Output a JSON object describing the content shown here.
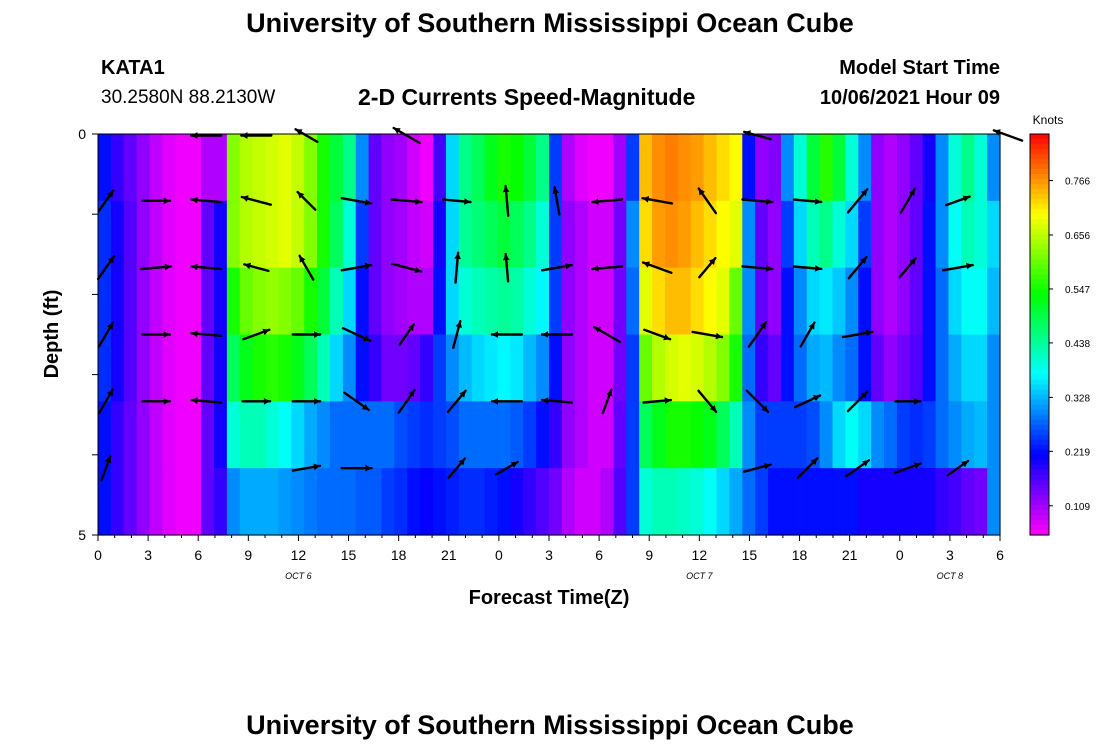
{
  "title": "University of Southern Mississippi Ocean Cube",
  "footer_title": "University of Southern Mississippi Ocean Cube",
  "station": {
    "id": "KATA1",
    "position": "30.2580N  88.2130W"
  },
  "subtitle": "2-D Currents Speed-Magnitude",
  "model_start": {
    "label": "Model Start Time",
    "value": "10/06/2021 Hour 09"
  },
  "chart_data": {
    "type": "heatmap",
    "title": "2-D Currents Speed-Magnitude",
    "xlabel": "Forecast Time(Z)",
    "ylabel": "Depth (ft)",
    "x_ticks": [
      "0",
      "3",
      "6",
      "9",
      "12",
      "15",
      "18",
      "21",
      "0",
      "3",
      "6",
      "9",
      "12",
      "15",
      "18",
      "21",
      "0",
      "3",
      "6"
    ],
    "x_range_hours": [
      0,
      54
    ],
    "date_labels": [
      {
        "text": "OCT 6",
        "hour": 12
      },
      {
        "text": "OCT 7",
        "hour": 36
      },
      {
        "text": "OCT 8",
        "hour": 51
      }
    ],
    "y_ticks": [
      "0",
      "5"
    ],
    "ylim": [
      0,
      5
    ],
    "depth_levels": [
      0,
      1,
      2,
      3,
      4,
      5
    ],
    "colorbar": {
      "label": "Knots",
      "ticks": [
        0.109,
        0.219,
        0.328,
        0.438,
        0.547,
        0.656,
        0.766
      ],
      "range": [
        0.05,
        0.86
      ]
    },
    "speed_knots_by_hour": [
      [
        0.22,
        0.18,
        0.15,
        0.12,
        0.09,
        0.07,
        0.06,
        0.06,
        0.1,
        0.1,
        0.62,
        0.65,
        0.66,
        0.67,
        0.68,
        0.66,
        0.62,
        0.55,
        0.5,
        0.45,
        0.3,
        0.15,
        0.12,
        0.11,
        0.08,
        0.06,
        0.17,
        0.35,
        0.45,
        0.48,
        0.52,
        0.55,
        0.54,
        0.5,
        0.45,
        0.25,
        0.1,
        0.07,
        0.06,
        0.06,
        0.11,
        0.25,
        0.74,
        0.77,
        0.78,
        0.77,
        0.76,
        0.74,
        0.72,
        0.7,
        0.22,
        0.12,
        0.13,
        0.3,
        0.4,
        0.5,
        0.56,
        0.5,
        0.4,
        0.3,
        0.12,
        0.1,
        0.12,
        0.15,
        0.2,
        0.3,
        0.4,
        0.45,
        0.4,
        0.3
      ],
      [
        0.24,
        0.2,
        0.16,
        0.12,
        0.09,
        0.07,
        0.06,
        0.06,
        0.15,
        0.2,
        0.62,
        0.65,
        0.66,
        0.67,
        0.68,
        0.66,
        0.62,
        0.55,
        0.48,
        0.4,
        0.25,
        0.15,
        0.12,
        0.11,
        0.09,
        0.08,
        0.2,
        0.35,
        0.44,
        0.46,
        0.48,
        0.5,
        0.48,
        0.45,
        0.4,
        0.25,
        0.12,
        0.1,
        0.08,
        0.08,
        0.14,
        0.3,
        0.72,
        0.76,
        0.77,
        0.76,
        0.74,
        0.72,
        0.7,
        0.68,
        0.3,
        0.15,
        0.12,
        0.25,
        0.35,
        0.42,
        0.45,
        0.4,
        0.35,
        0.25,
        0.12,
        0.1,
        0.12,
        0.15,
        0.22,
        0.3,
        0.38,
        0.42,
        0.4,
        0.35
      ],
      [
        0.24,
        0.2,
        0.16,
        0.12,
        0.09,
        0.07,
        0.06,
        0.06,
        0.15,
        0.2,
        0.55,
        0.6,
        0.62,
        0.63,
        0.62,
        0.6,
        0.55,
        0.5,
        0.42,
        0.35,
        0.22,
        0.15,
        0.12,
        0.11,
        0.1,
        0.1,
        0.22,
        0.35,
        0.4,
        0.42,
        0.43,
        0.44,
        0.43,
        0.4,
        0.37,
        0.25,
        0.12,
        0.1,
        0.08,
        0.08,
        0.14,
        0.28,
        0.68,
        0.72,
        0.74,
        0.74,
        0.72,
        0.7,
        0.68,
        0.6,
        0.3,
        0.15,
        0.12,
        0.22,
        0.3,
        0.35,
        0.36,
        0.34,
        0.3,
        0.22,
        0.12,
        0.1,
        0.12,
        0.15,
        0.22,
        0.28,
        0.35,
        0.38,
        0.38,
        0.33
      ],
      [
        0.24,
        0.2,
        0.16,
        0.12,
        0.09,
        0.07,
        0.06,
        0.06,
        0.15,
        0.2,
        0.48,
        0.52,
        0.55,
        0.56,
        0.55,
        0.52,
        0.48,
        0.42,
        0.35,
        0.3,
        0.22,
        0.18,
        0.14,
        0.14,
        0.15,
        0.18,
        0.25,
        0.3,
        0.33,
        0.35,
        0.36,
        0.37,
        0.36,
        0.33,
        0.3,
        0.22,
        0.12,
        0.1,
        0.08,
        0.08,
        0.14,
        0.25,
        0.6,
        0.65,
        0.67,
        0.68,
        0.67,
        0.65,
        0.62,
        0.55,
        0.28,
        0.18,
        0.15,
        0.22,
        0.28,
        0.32,
        0.33,
        0.3,
        0.28,
        0.22,
        0.15,
        0.12,
        0.14,
        0.16,
        0.22,
        0.28,
        0.32,
        0.35,
        0.35,
        0.3
      ],
      [
        0.22,
        0.18,
        0.15,
        0.12,
        0.09,
        0.07,
        0.06,
        0.06,
        0.15,
        0.2,
        0.4,
        0.42,
        0.42,
        0.4,
        0.38,
        0.35,
        0.32,
        0.3,
        0.28,
        0.28,
        0.28,
        0.28,
        0.28,
        0.26,
        0.25,
        0.24,
        0.25,
        0.26,
        0.28,
        0.28,
        0.28,
        0.28,
        0.27,
        0.25,
        0.22,
        0.18,
        0.12,
        0.1,
        0.08,
        0.08,
        0.15,
        0.25,
        0.48,
        0.52,
        0.55,
        0.55,
        0.54,
        0.52,
        0.48,
        0.42,
        0.3,
        0.25,
        0.25,
        0.25,
        0.25,
        0.26,
        0.3,
        0.35,
        0.38,
        0.35,
        0.3,
        0.28,
        0.25,
        0.24,
        0.25,
        0.28,
        0.3,
        0.32,
        0.33,
        0.3
      ],
      [
        0.22,
        0.18,
        0.15,
        0.12,
        0.09,
        0.07,
        0.06,
        0.06,
        0.15,
        0.18,
        0.3,
        0.32,
        0.32,
        0.32,
        0.31,
        0.3,
        0.29,
        0.28,
        0.28,
        0.28,
        0.27,
        0.27,
        0.25,
        0.24,
        0.22,
        0.21,
        0.22,
        0.23,
        0.24,
        0.24,
        0.23,
        0.22,
        0.2,
        0.18,
        0.16,
        0.14,
        0.1,
        0.08,
        0.08,
        0.1,
        0.16,
        0.25,
        0.4,
        0.42,
        0.42,
        0.41,
        0.4,
        0.38,
        0.35,
        0.32,
        0.28,
        0.25,
        0.22,
        0.22,
        0.22,
        0.22,
        0.22,
        0.22,
        0.22,
        0.2,
        0.2,
        0.2,
        0.2,
        0.2,
        0.2,
        0.18,
        0.17,
        0.15,
        0.14,
        0.3
      ]
    ],
    "vectors_by_level_every_3h": [
      [
        [
          0,
          0
        ],
        [
          0,
          0
        ],
        [
          270,
          0.6
        ],
        [
          270,
          0.6
        ],
        [
          300,
          0.5
        ],
        [
          0,
          0
        ],
        [
          300,
          0.6
        ],
        [
          0,
          0
        ],
        [
          0,
          0
        ],
        [
          0,
          0
        ],
        [
          0,
          0
        ],
        [
          0,
          0
        ],
        [
          0,
          0
        ],
        [
          285,
          0.55
        ],
        [
          0,
          0
        ],
        [
          0,
          0
        ],
        [
          0,
          0
        ],
        [
          0,
          0
        ],
        [
          290,
          0.6
        ]
      ],
      [
        [
          35,
          0.5
        ],
        [
          90,
          0.55
        ],
        [
          275,
          0.6
        ],
        [
          285,
          0.6
        ],
        [
          315,
          0.5
        ],
        [
          100,
          0.6
        ],
        [
          95,
          0.6
        ],
        [
          95,
          0.55
        ],
        [
          355,
          0.6
        ],
        [
          350,
          0.55
        ],
        [
          265,
          0.6
        ],
        [
          280,
          0.6
        ],
        [
          325,
          0.6
        ],
        [
          95,
          0.6
        ],
        [
          95,
          0.55
        ],
        [
          40,
          0.6
        ],
        [
          30,
          0.55
        ],
        [
          70,
          0.5
        ],
        [
          0,
          0
        ]
      ],
      [
        [
          35,
          0.55
        ],
        [
          85,
          0.6
        ],
        [
          275,
          0.6
        ],
        [
          285,
          0.5
        ],
        [
          330,
          0.55
        ],
        [
          80,
          0.6
        ],
        [
          105,
          0.6
        ],
        [
          5,
          0.6
        ],
        [
          355,
          0.55
        ],
        [
          80,
          0.6
        ],
        [
          265,
          0.6
        ],
        [
          290,
          0.6
        ],
        [
          40,
          0.5
        ],
        [
          95,
          0.6
        ],
        [
          95,
          0.55
        ],
        [
          40,
          0.55
        ],
        [
          40,
          0.5
        ],
        [
          80,
          0.6
        ],
        [
          0,
          0
        ]
      ],
      [
        [
          30,
          0.55
        ],
        [
          90,
          0.55
        ],
        [
          275,
          0.6
        ],
        [
          70,
          0.55
        ],
        [
          90,
          0.55
        ],
        [
          115,
          0.6
        ],
        [
          35,
          0.5
        ],
        [
          15,
          0.55
        ],
        [
          270,
          0.6
        ],
        [
          270,
          0.6
        ],
        [
          300,
          0.6
        ],
        [
          110,
          0.55
        ],
        [
          100,
          0.6
        ],
        [
          35,
          0.6
        ],
        [
          30,
          0.55
        ],
        [
          80,
          0.6
        ],
        [
          0,
          0
        ],
        [
          0,
          0
        ],
        [
          0,
          0
        ]
      ],
      [
        [
          30,
          0.55
        ],
        [
          90,
          0.55
        ],
        [
          275,
          0.6
        ],
        [
          90,
          0.55
        ],
        [
          90,
          0.55
        ],
        [
          125,
          0.6
        ],
        [
          35,
          0.55
        ],
        [
          40,
          0.55
        ],
        [
          270,
          0.6
        ],
        [
          275,
          0.6
        ],
        [
          20,
          0.5
        ],
        [
          85,
          0.55
        ],
        [
          140,
          0.55
        ],
        [
          135,
          0.6
        ],
        [
          65,
          0.55
        ],
        [
          45,
          0.55
        ],
        [
          90,
          0.5
        ],
        [
          0,
          0
        ],
        [
          0,
          0
        ]
      ],
      [
        [
          20,
          0.5
        ],
        [
          0,
          0
        ],
        [
          0,
          0
        ],
        [
          0,
          0
        ],
        [
          80,
          0.55
        ],
        [
          90,
          0.6
        ],
        [
          0,
          0
        ],
        [
          40,
          0.5
        ],
        [
          60,
          0.5
        ],
        [
          0,
          0
        ],
        [
          0,
          0
        ],
        [
          0,
          0
        ],
        [
          0,
          0
        ],
        [
          75,
          0.55
        ],
        [
          45,
          0.55
        ],
        [
          55,
          0.55
        ],
        [
          70,
          0.55
        ],
        [
          55,
          0.5
        ],
        [
          0,
          0
        ]
      ]
    ]
  }
}
